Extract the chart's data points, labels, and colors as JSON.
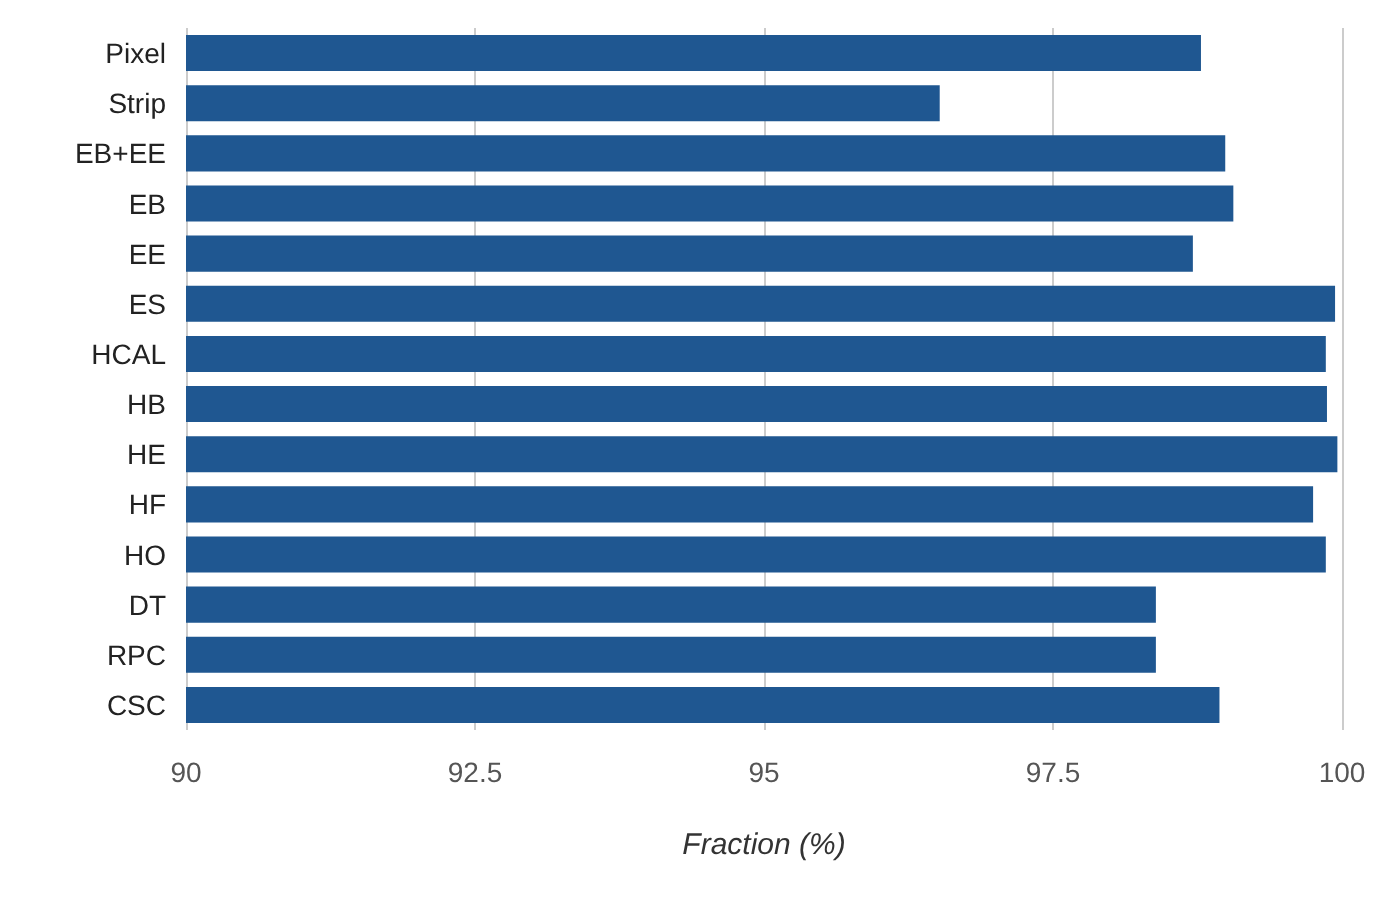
{
  "chart_data": {
    "type": "bar",
    "orientation": "horizontal",
    "xlabel": "Fraction (%)",
    "categories": [
      "Pixel",
      "Strip",
      "EB+EE",
      "EB",
      "EE",
      "ES",
      "HCAL",
      "HB",
      "HE",
      "HF",
      "HO",
      "DT",
      "RPC",
      "CSC"
    ],
    "values": [
      98.78,
      96.52,
      98.99,
      99.06,
      98.71,
      99.94,
      99.86,
      99.87,
      99.96,
      99.75,
      99.86,
      98.39,
      98.39,
      98.94
    ],
    "color": "#1f5791",
    "xlim": [
      90,
      100
    ],
    "xticks": [
      90,
      92.5,
      95,
      97.5,
      100
    ],
    "grid": "x"
  }
}
